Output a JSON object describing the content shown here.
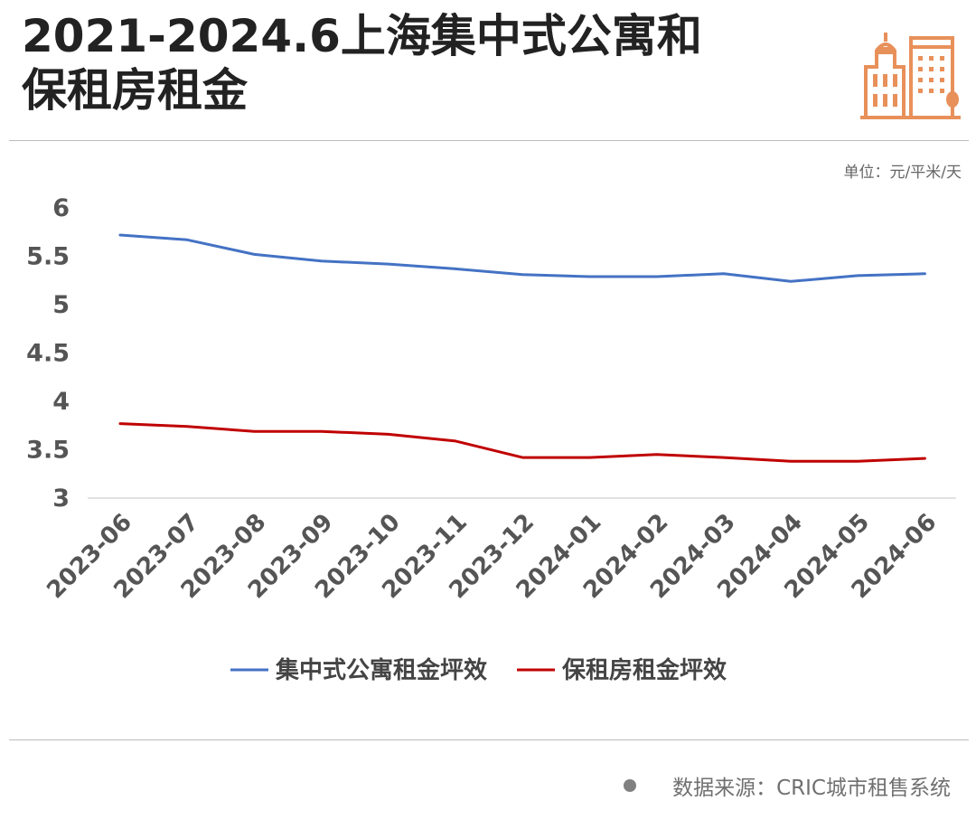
{
  "header": {
    "title_line1": "2021-2024.6上海集中式公寓和",
    "title_line2": "保租房租金"
  },
  "unit_label": "单位：元/平米/天",
  "footer": {
    "source": "数据来源：CRIC城市租售系统"
  },
  "icons": {
    "logo": "city-buildings-icon",
    "bullet": "dot-icon"
  },
  "colors": {
    "series1": "#4472c4",
    "series2": "#c00000",
    "logo": "#e8905a",
    "text": "#222222"
  },
  "chart_data": {
    "type": "line",
    "categories": [
      "2023-06",
      "2023-07",
      "2023-08",
      "2023-09",
      "2023-10",
      "2023-11",
      "2023-12",
      "2024-01",
      "2024-02",
      "2024-03",
      "2024-04",
      "2024-05",
      "2024-06"
    ],
    "series": [
      {
        "name": "集中式公寓租金坪效",
        "values": [
          5.72,
          5.67,
          5.52,
          5.45,
          5.42,
          5.37,
          5.31,
          5.29,
          5.29,
          5.32,
          5.24,
          5.3,
          5.32
        ]
      },
      {
        "name": "保租房租金坪效",
        "values": [
          3.77,
          3.74,
          3.69,
          3.69,
          3.66,
          3.59,
          3.42,
          3.42,
          3.45,
          3.42,
          3.38,
          3.38,
          3.41
        ]
      }
    ],
    "yticks": [
      "6",
      "5.5",
      "5",
      "4.5",
      "4",
      "3.5",
      "3"
    ],
    "ylim": [
      3,
      6
    ],
    "grid": "bottom-axis-only",
    "legend": "bottom-center"
  }
}
